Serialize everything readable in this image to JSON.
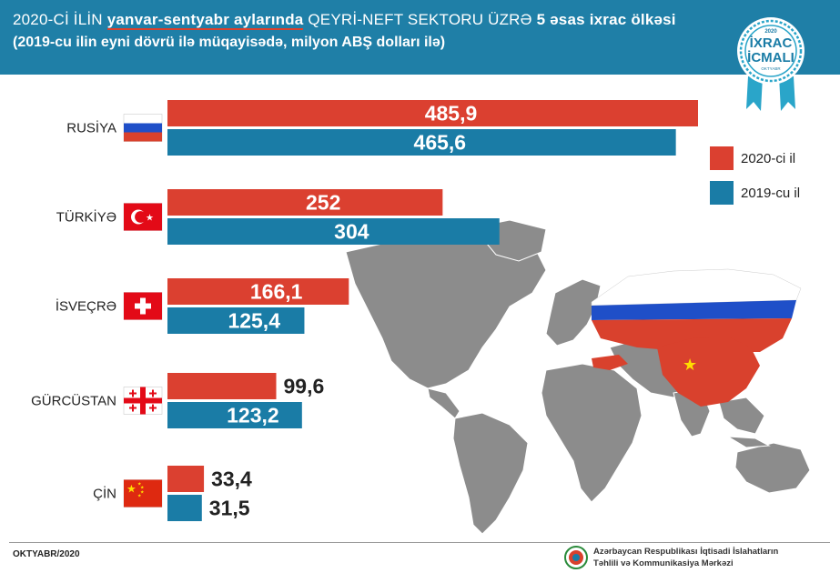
{
  "header": {
    "title_part1": "2020-Cİ İLİN ",
    "title_part2": "yanvar-sentyabr aylarında",
    "title_part3": "  QEYRİ-NEFT SEKTORU ÜZRƏ ",
    "title_part4": "5 əsas ixrac ölkəsi",
    "subtitle": "(2019-cu ilin eyni dövrü ilə müqayisədə, milyon ABŞ dolları ilə)"
  },
  "badge": {
    "year": "2020",
    "line1": "İXRAC",
    "line2": "İCMALI",
    "month": "OKTYABR"
  },
  "chart_data": {
    "type": "bar",
    "orientation": "horizontal",
    "categories": [
      "RUSİYA",
      "TÜRKİYƏ",
      "İSVEÇRƏ",
      "GÜRCÜSTAN",
      "ÇİN"
    ],
    "series": [
      {
        "name": "2020-ci il",
        "color": "#db4030",
        "values": [
          485.9,
          252,
          166.1,
          99.6,
          33.4
        ],
        "labels": [
          "485,9",
          "252",
          "166,1",
          "99,6",
          "33,4"
        ]
      },
      {
        "name": "2019-cu il",
        "color": "#1a7ca6",
        "values": [
          465.6,
          304,
          125.4,
          123.2,
          31.5
        ],
        "labels": [
          "465,6",
          "304",
          "125,4",
          "123,2",
          "31,5"
        ]
      }
    ],
    "xlim": [
      0,
      485.9
    ],
    "legend": "right"
  },
  "footer": {
    "date": "OKTYABR/2020",
    "org_line1": "Azərbaycan Respublikası İqtisadi İslahatların",
    "org_line2": "Təhlili və Kommunikasiya Mərkəzi"
  }
}
